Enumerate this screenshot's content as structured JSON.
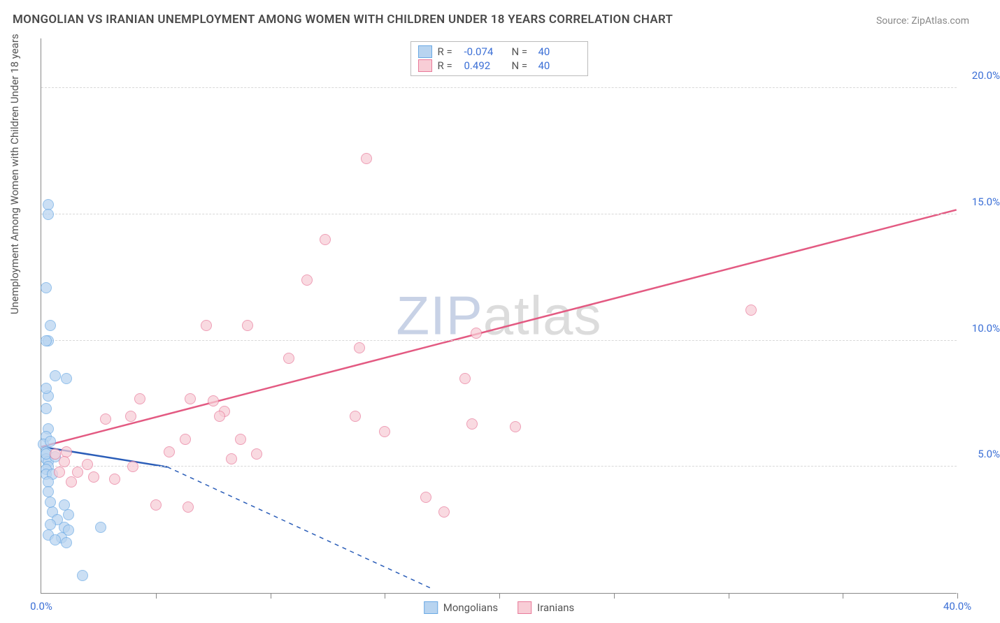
{
  "title": "MONGOLIAN VS IRANIAN UNEMPLOYMENT AMONG WOMEN WITH CHILDREN UNDER 18 YEARS CORRELATION CHART",
  "source": "Source: ZipAtlas.com",
  "y_axis_label": "Unemployment Among Women with Children Under 18 years",
  "watermark_a": "ZIP",
  "watermark_b": "atlas",
  "chart": {
    "type": "scatter",
    "xlim": [
      0,
      40
    ],
    "ylim": [
      0,
      22
    ],
    "x_ticks": [
      0,
      5,
      10,
      15,
      20,
      25,
      30,
      35,
      40
    ],
    "x_tick_labels": {
      "0": "0.0%",
      "40": "40.0%"
    },
    "y_ticks": [
      5,
      10,
      15,
      20
    ],
    "y_tick_labels": {
      "5": "5.0%",
      "10": "10.0%",
      "15": "15.0%",
      "20": "20.0%"
    },
    "grid_color": "#d8d8d8",
    "axis_color": "#888888",
    "background_color": "#ffffff",
    "tick_label_color": "#3b6fd6",
    "marker_radius": 8,
    "series": [
      {
        "name": "Mongolians",
        "color_fill": "#b8d4f0",
        "color_stroke": "#6aa9e4",
        "R": "-0.074",
        "N": "40",
        "trend": {
          "x1": 0,
          "y1": 5.8,
          "x2": 5.5,
          "y2": 5.0,
          "solid_until_x": 5.5,
          "dash_to_x": 17,
          "dash_to_y": 0.2,
          "stroke": "#2a5db8",
          "stroke_width": 2.5
        },
        "points": [
          [
            0.3,
            15.4
          ],
          [
            0.3,
            15.0
          ],
          [
            0.2,
            12.1
          ],
          [
            0.4,
            10.6
          ],
          [
            0.3,
            10.0
          ],
          [
            0.2,
            10.0
          ],
          [
            0.6,
            8.6
          ],
          [
            1.1,
            8.5
          ],
          [
            0.2,
            7.3
          ],
          [
            0.3,
            6.5
          ],
          [
            0.2,
            6.2
          ],
          [
            0.1,
            5.9
          ],
          [
            0.2,
            5.6
          ],
          [
            0.2,
            5.3
          ],
          [
            0.3,
            5.2
          ],
          [
            0.3,
            5.0
          ],
          [
            0.2,
            4.9
          ],
          [
            0.2,
            4.7
          ],
          [
            0.5,
            4.7
          ],
          [
            0.3,
            4.4
          ],
          [
            1.0,
            3.5
          ],
          [
            0.5,
            3.2
          ],
          [
            1.2,
            3.1
          ],
          [
            0.7,
            2.9
          ],
          [
            0.4,
            2.7
          ],
          [
            1.0,
            2.6
          ],
          [
            1.2,
            2.5
          ],
          [
            0.3,
            2.3
          ],
          [
            2.6,
            2.6
          ],
          [
            0.9,
            2.2
          ],
          [
            0.6,
            2.1
          ],
          [
            1.1,
            2.0
          ],
          [
            0.3,
            4.0
          ],
          [
            0.4,
            3.6
          ],
          [
            1.8,
            0.7
          ],
          [
            0.3,
            7.8
          ],
          [
            0.4,
            6.0
          ],
          [
            0.2,
            5.5
          ],
          [
            0.6,
            5.4
          ],
          [
            0.2,
            8.1
          ]
        ]
      },
      {
        "name": "Iranians",
        "color_fill": "#f8cdd6",
        "color_stroke": "#e87a9a",
        "R": "0.492",
        "N": "40",
        "trend": {
          "x1": 0,
          "y1": 5.8,
          "x2": 40,
          "y2": 15.2,
          "stroke": "#e35a82",
          "stroke_width": 2.5
        },
        "points": [
          [
            14.2,
            17.2
          ],
          [
            12.4,
            14.0
          ],
          [
            11.6,
            12.4
          ],
          [
            13.9,
            9.7
          ],
          [
            19.0,
            10.3
          ],
          [
            31.0,
            11.2
          ],
          [
            18.5,
            8.5
          ],
          [
            18.8,
            6.7
          ],
          [
            20.7,
            6.6
          ],
          [
            15.0,
            6.4
          ],
          [
            13.7,
            7.0
          ],
          [
            10.8,
            9.3
          ],
          [
            7.2,
            10.6
          ],
          [
            9.0,
            10.6
          ],
          [
            6.5,
            7.7
          ],
          [
            7.5,
            7.6
          ],
          [
            8.0,
            7.2
          ],
          [
            7.8,
            7.0
          ],
          [
            9.4,
            5.5
          ],
          [
            8.3,
            5.3
          ],
          [
            8.7,
            6.1
          ],
          [
            6.3,
            6.1
          ],
          [
            5.6,
            5.6
          ],
          [
            4.3,
            7.7
          ],
          [
            3.9,
            7.0
          ],
          [
            2.8,
            6.9
          ],
          [
            2.0,
            5.1
          ],
          [
            2.3,
            4.6
          ],
          [
            1.6,
            4.8
          ],
          [
            1.1,
            5.6
          ],
          [
            1.0,
            5.2
          ],
          [
            0.8,
            4.8
          ],
          [
            0.6,
            5.5
          ],
          [
            5.0,
            3.5
          ],
          [
            6.4,
            3.4
          ],
          [
            16.8,
            3.8
          ],
          [
            17.6,
            3.2
          ],
          [
            3.2,
            4.5
          ],
          [
            4.0,
            5.0
          ],
          [
            1.3,
            4.4
          ]
        ]
      }
    ]
  },
  "legend_top": {
    "rows": [
      {
        "swatch_fill": "#b8d4f0",
        "swatch_stroke": "#6aa9e4",
        "r_label": "R =",
        "r_val": "-0.074",
        "n_label": "N =",
        "n_val": "40"
      },
      {
        "swatch_fill": "#f8cdd6",
        "swatch_stroke": "#e87a9a",
        "r_label": "R =",
        "r_val": "0.492",
        "n_label": "N =",
        "n_val": "40"
      }
    ]
  },
  "legend_bottom": {
    "items": [
      {
        "swatch_fill": "#b8d4f0",
        "swatch_stroke": "#6aa9e4",
        "label": "Mongolians"
      },
      {
        "swatch_fill": "#f8cdd6",
        "swatch_stroke": "#e87a9a",
        "label": "Iranians"
      }
    ]
  }
}
